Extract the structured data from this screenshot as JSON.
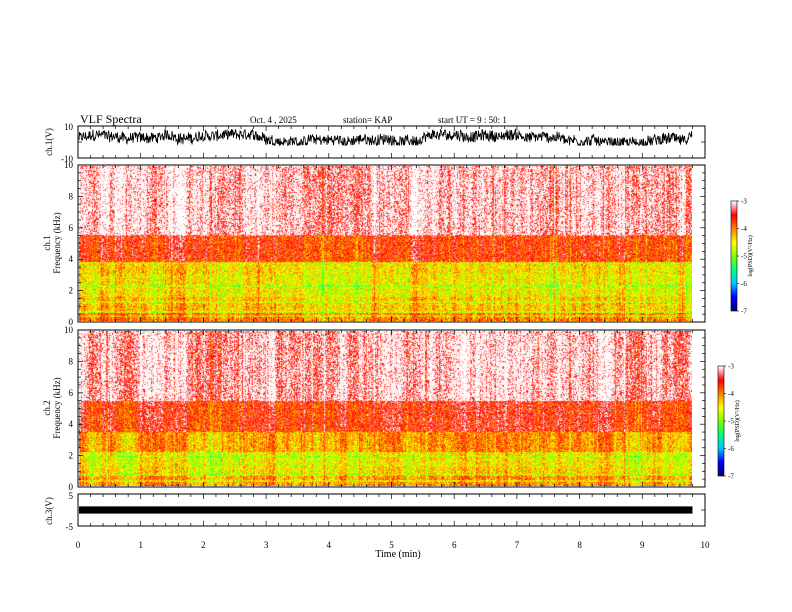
{
  "header": {
    "title": "VLF Spectra",
    "date": "Oct. 4 , 2025",
    "station": "station= KAP",
    "start": "start UT =  9 : 50: 1"
  },
  "chart_data": [
    {
      "type": "line",
      "name": "ch1-waveform",
      "ylabel": "ch.1(V)",
      "ylim": [
        -10,
        10
      ],
      "ytick_labels": [
        "-10",
        "10"
      ],
      "xlim": [
        0,
        10
      ],
      "data_end_min": 9.8,
      "approx_level_v": 2.5,
      "approx_band_v": [
        -2,
        6
      ]
    },
    {
      "type": "heatmap",
      "name": "ch1-spectrogram",
      "ylabel_channel": "ch.1",
      "ylabel": "Frequency (kHz)",
      "ylim": [
        0,
        10
      ],
      "ytick_labels": [
        "0",
        "2",
        "4",
        "6",
        "8",
        "10"
      ],
      "xlim": [
        0,
        10
      ],
      "data_end_min": 9.8,
      "colorbar": {
        "label": "log(PSD)(V²/Hz)",
        "range": [
          -7,
          -3
        ],
        "tick_labels": [
          "-3",
          "-4",
          "-5",
          "-6",
          "-7"
        ],
        "colors": [
          "#000080",
          "#0000ff",
          "#00c8ff",
          "#00ff80",
          "#80ff00",
          "#ffff00",
          "#ff8000",
          "#ff0000",
          "#ffffff"
        ]
      },
      "bands_khz": [
        {
          "from": 0.0,
          "to": 0.5,
          "level": -4.0
        },
        {
          "from": 0.5,
          "to": 1.5,
          "level": -4.3
        },
        {
          "from": 1.5,
          "to": 3.0,
          "level": -4.5
        },
        {
          "from": 3.0,
          "to": 3.8,
          "level": -4.4
        },
        {
          "from": 3.8,
          "to": 5.5,
          "level": -3.7
        },
        {
          "from": 5.5,
          "to": 10.0,
          "level": -3.3
        }
      ],
      "lines_khz": [
        0.3,
        0.55,
        1.2,
        2.0,
        2.25,
        3.7,
        5.5
      ]
    },
    {
      "type": "heatmap",
      "name": "ch2-spectrogram",
      "ylabel_channel": "ch.2",
      "ylabel": "Frequency (kHz)",
      "ylim": [
        0,
        10
      ],
      "ytick_labels": [
        "0",
        "2",
        "4",
        "6",
        "8",
        "10"
      ],
      "xlim": [
        0,
        10
      ],
      "data_end_min": 9.8,
      "colorbar": {
        "label": "log(PSD)(V²/Hz)",
        "range": [
          -7,
          -3
        ],
        "tick_labels": [
          "-3",
          "-4",
          "-5",
          "-6",
          "-7"
        ],
        "colors": [
          "#000080",
          "#0000ff",
          "#00c8ff",
          "#00ff80",
          "#80ff00",
          "#ffff00",
          "#ff8000",
          "#ff0000",
          "#ffffff"
        ]
      },
      "bands_khz": [
        {
          "from": 0.0,
          "to": 0.6,
          "level": -4.1
        },
        {
          "from": 0.6,
          "to": 1.2,
          "level": -4.4
        },
        {
          "from": 1.2,
          "to": 2.2,
          "level": -4.5
        },
        {
          "from": 2.2,
          "to": 3.5,
          "level": -4.1
        },
        {
          "from": 3.5,
          "to": 5.5,
          "level": -3.6
        },
        {
          "from": 5.5,
          "to": 10.0,
          "level": -3.3
        }
      ],
      "lines_khz": [
        0.3,
        0.7,
        1.9
      ]
    },
    {
      "type": "line",
      "name": "ch3-waveform",
      "ylabel": "ch.3(V)",
      "ylim": [
        -5,
        5
      ],
      "ytick_labels": [
        "-5",
        "5"
      ],
      "xlim": [
        0,
        10
      ],
      "data_end_min": 9.8,
      "approx_level_v": 0,
      "approx_band_v": [
        -0.5,
        0.5
      ]
    }
  ],
  "x_axis": {
    "label": "Time (min)",
    "range": [
      0,
      10
    ],
    "tick_labels": [
      "0",
      "1",
      "2",
      "3",
      "4",
      "5",
      "6",
      "7",
      "8",
      "9",
      "10"
    ]
  }
}
